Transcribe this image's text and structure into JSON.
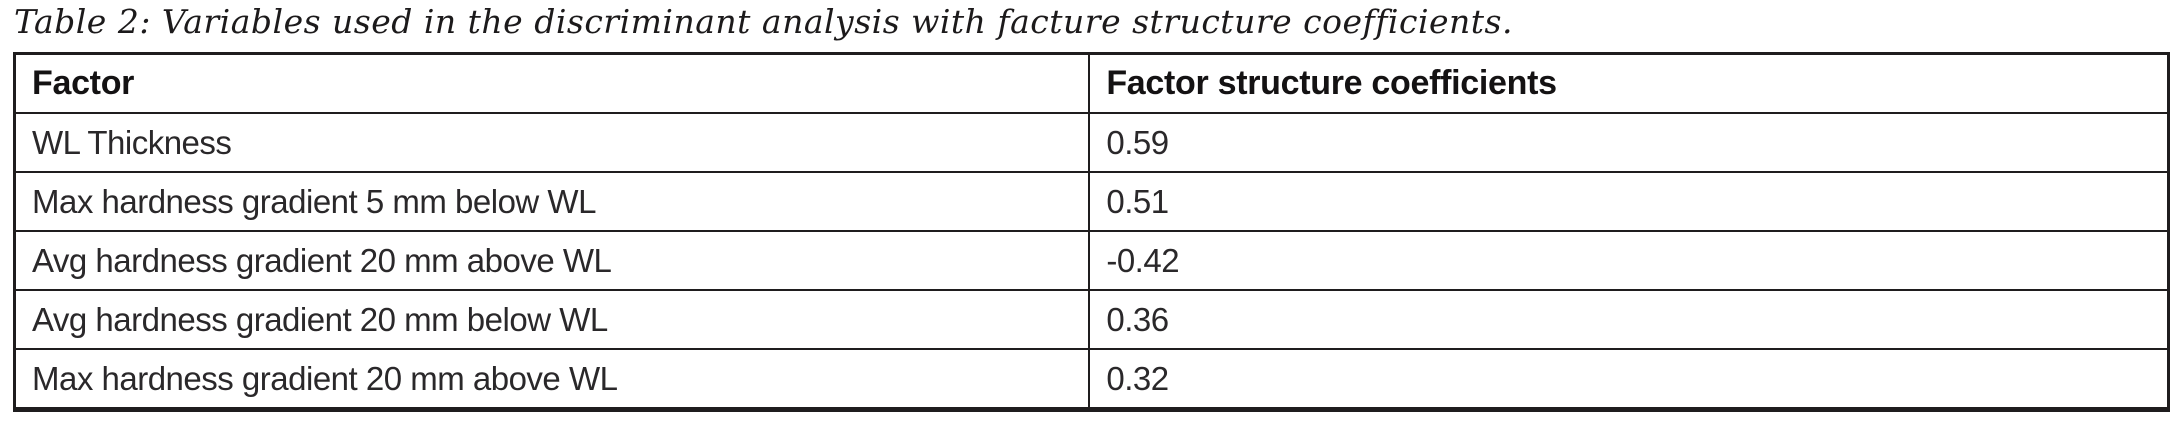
{
  "caption": "Table 2: Variables used in the discriminant analysis with facture structure coefficients.",
  "table": {
    "columns": {
      "factor": "Factor",
      "coefficient": "Factor structure coefficients"
    },
    "rows": [
      {
        "factor": "WL Thickness",
        "coefficient": "0.59"
      },
      {
        "factor": "Max hardness gradient 5 mm below WL",
        "coefficient": "0.51"
      },
      {
        "factor": "Avg hardness gradient 20 mm above WL",
        "coefficient": "-0.42"
      },
      {
        "factor": "Avg hardness gradient 20 mm below WL",
        "coefficient": "0.36"
      },
      {
        "factor": "Max hardness gradient 20 mm above WL",
        "coefficient": "0.32"
      }
    ]
  },
  "colors": {
    "border": "#1f1d1e",
    "text": "#2a282a",
    "background": "#ffffff"
  },
  "chart_data": {
    "type": "table",
    "title": "Table 2: Variables used in the discriminant analysis with facture structure coefficients.",
    "categories": [
      "WL Thickness",
      "Max hardness gradient 5 mm below WL",
      "Avg hardness gradient 20 mm above WL",
      "Avg hardness gradient 20 mm below WL",
      "Max hardness gradient 20 mm above WL"
    ],
    "values": [
      0.59,
      0.51,
      -0.42,
      0.36,
      0.32
    ]
  }
}
